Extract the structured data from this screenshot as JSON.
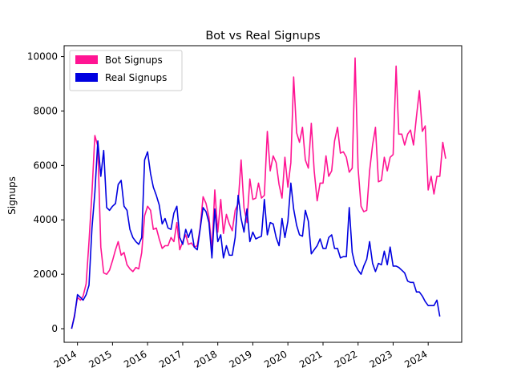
{
  "chart_data": {
    "type": "line",
    "title": "Bot vs Real Signups",
    "xlabel": "",
    "ylabel": "Signups",
    "x_start": "2013-11",
    "x_step": "1 month",
    "xlim": [
      "2013-08-15",
      "2024-12-15"
    ],
    "ylim": [
      -500,
      10400
    ],
    "x_ticks": [
      {
        "label": "2014",
        "date": "2014-01-01"
      },
      {
        "label": "2015",
        "date": "2015-01-01"
      },
      {
        "label": "2016",
        "date": "2016-01-01"
      },
      {
        "label": "2017",
        "date": "2017-01-01"
      },
      {
        "label": "2018",
        "date": "2018-01-01"
      },
      {
        "label": "2019",
        "date": "2019-01-01"
      },
      {
        "label": "2020",
        "date": "2020-01-01"
      },
      {
        "label": "2021",
        "date": "2021-01-01"
      },
      {
        "label": "2022",
        "date": "2022-01-01"
      },
      {
        "label": "2023",
        "date": "2023-01-01"
      },
      {
        "label": "2024",
        "date": "2024-01-01"
      }
    ],
    "y_ticks": [
      {
        "label": "0",
        "value": 0
      },
      {
        "label": "2000",
        "value": 2000
      },
      {
        "label": "4000",
        "value": 4000
      },
      {
        "label": "6000",
        "value": 6000
      },
      {
        "label": "8000",
        "value": 8000
      },
      {
        "label": "10000",
        "value": 10000
      }
    ],
    "grid": false,
    "legend_position": "top-left",
    "series": [
      {
        "name": "Bot Signups",
        "color": "#ff1493",
        "values": [
          0,
          500,
          1150,
          1050,
          1200,
          1650,
          3200,
          5000,
          7100,
          6700,
          3000,
          2050,
          2000,
          2150,
          2500,
          2900,
          3200,
          2700,
          2800,
          2350,
          2200,
          2100,
          2250,
          2200,
          2800,
          4150,
          4500,
          4350,
          3650,
          3700,
          3300,
          2950,
          3050,
          3050,
          3350,
          3200,
          3900,
          2900,
          3200,
          3450,
          3100,
          3150,
          3000,
          3050,
          3700,
          4850,
          4600,
          4100,
          2900,
          5100,
          3550,
          4750,
          3500,
          4200,
          3850,
          3600,
          4350,
          4600,
          6200,
          4450,
          3900,
          5500,
          4750,
          4800,
          5350,
          4800,
          4900,
          7250,
          5800,
          6350,
          6100,
          5300,
          4800,
          6300,
          5200,
          6100,
          9250,
          7200,
          6850,
          7400,
          6200,
          5900,
          7550,
          5800,
          4700,
          5350,
          5350,
          6350,
          5600,
          5800,
          6900,
          7400,
          6450,
          6500,
          6300,
          5750,
          5900,
          9950,
          5900,
          4500,
          4300,
          4350,
          5800,
          6750,
          7400,
          5400,
          5450,
          6300,
          5800,
          6300,
          6400,
          9650,
          7150,
          7150,
          6750,
          7150,
          7300,
          6750,
          7800,
          8750,
          7250,
          7450,
          5100,
          5600,
          4950,
          5600,
          5600,
          6850,
          6250
        ]
      },
      {
        "name": "Real Signups",
        "color": "#0000e0",
        "values": [
          0,
          450,
          1250,
          1150,
          1050,
          1250,
          1600,
          3700,
          5000,
          6900,
          5600,
          6550,
          4450,
          4350,
          4500,
          4600,
          5300,
          5450,
          4500,
          4350,
          3650,
          3350,
          3200,
          3100,
          3350,
          6200,
          6500,
          5700,
          5200,
          4900,
          4550,
          3850,
          4050,
          3700,
          3650,
          4250,
          4500,
          3350,
          3100,
          3650,
          3350,
          3650,
          3000,
          2900,
          3650,
          4450,
          4300,
          3900,
          2600,
          4400,
          3200,
          3450,
          2600,
          3050,
          2700,
          2700,
          3350,
          4900,
          4050,
          3550,
          4400,
          3200,
          3550,
          3300,
          3350,
          3400,
          4750,
          3450,
          3900,
          3850,
          3350,
          3050,
          4050,
          3350,
          3950,
          5350,
          4400,
          3800,
          3450,
          3400,
          4350,
          3950,
          2750,
          2900,
          3050,
          3300,
          2950,
          2950,
          3350,
          3450,
          2950,
          2950,
          2600,
          2650,
          2650,
          4450,
          2800,
          2350,
          2150,
          2000,
          2300,
          2550,
          3200,
          2400,
          2100,
          2400,
          2350,
          2850,
          2350,
          3000,
          2300,
          2300,
          2250,
          2150,
          2050,
          1750,
          1700,
          1700,
          1350,
          1350,
          1200,
          1000,
          850,
          850,
          850,
          1050,
          450
        ]
      }
    ]
  }
}
